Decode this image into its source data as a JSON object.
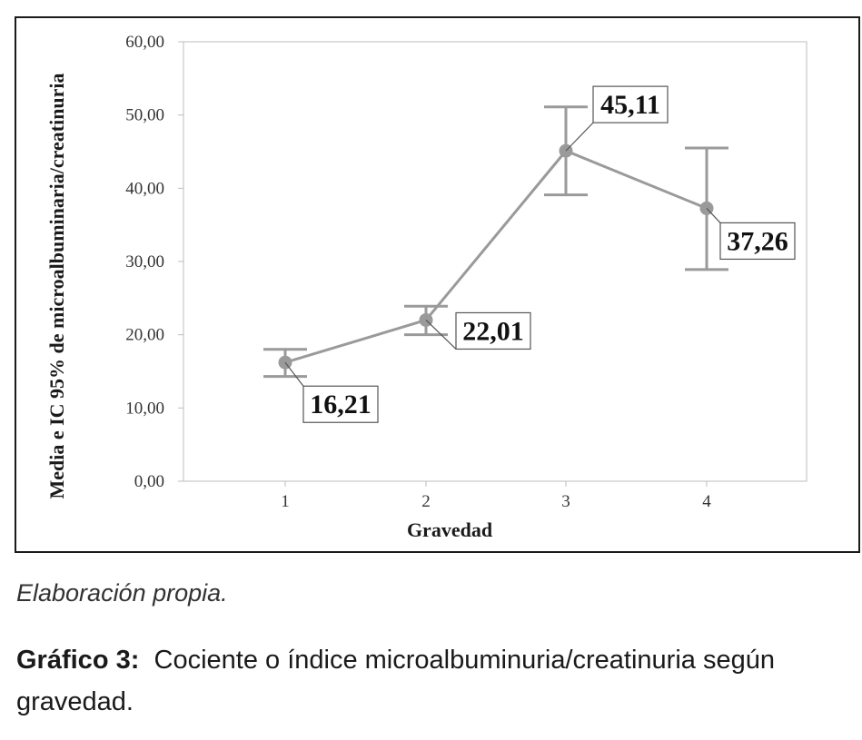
{
  "chart_data": {
    "type": "line",
    "xlabel": "Gravedad",
    "ylabel": "Media e IC 95% de microalbuminaria/creatinuria",
    "categories": [
      "1",
      "2",
      "3",
      "4"
    ],
    "ylim": [
      0,
      60
    ],
    "y_ticks": [
      "0,00",
      "10,00",
      "20,00",
      "30,00",
      "40,00",
      "50,00",
      "60,00"
    ],
    "series": [
      {
        "values": [
          16.21,
          22.01,
          45.11,
          37.26
        ],
        "labels": [
          "16,21",
          "22,01",
          "45,11",
          "37,26"
        ],
        "ci_lower": [
          14.3,
          20.0,
          39.1,
          28.9
        ],
        "ci_upper": [
          18.0,
          23.9,
          51.1,
          45.5
        ],
        "color": "#9a9a9a"
      }
    ],
    "grid": false,
    "legend": "none"
  },
  "source_note": "Elaboración propia.",
  "caption": {
    "label": "Gráfico 3:",
    "text": "Cociente o índice microalbuminuria/creatinuria según gravedad."
  }
}
